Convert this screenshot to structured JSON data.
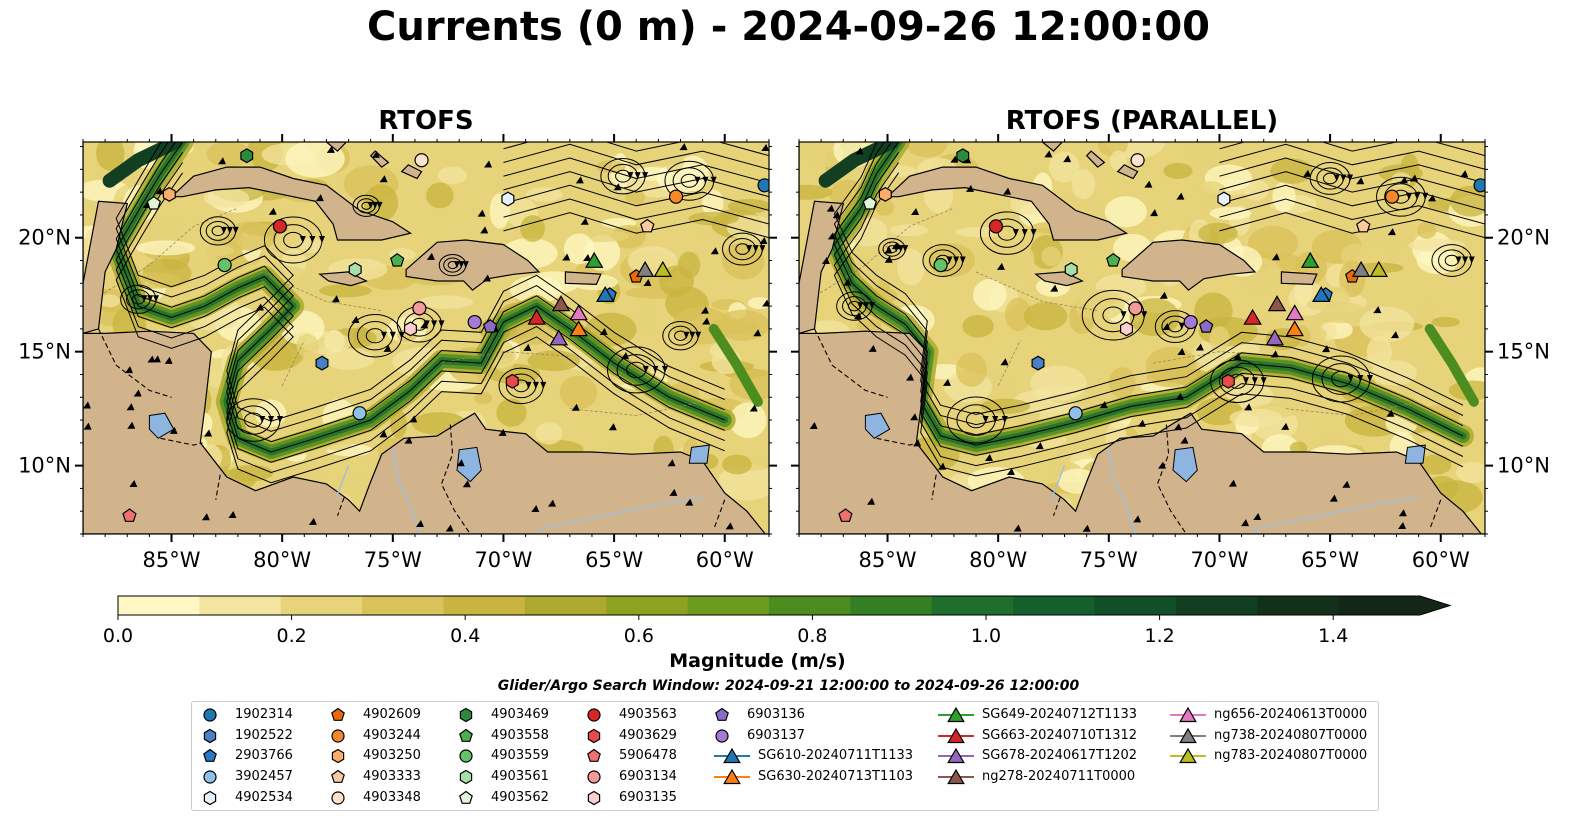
{
  "title": "Currents (0 m) - 2024-09-26 12:00:00",
  "panels": [
    {
      "title": "RTOFS"
    },
    {
      "title": "RTOFS (PARALLEL)"
    }
  ],
  "colors": {
    "land": "#d2b48c",
    "lakes": "#8eb5e0",
    "rivers": "#a4bfdc",
    "colormap": [
      "#fff8c4",
      "#f3e49f",
      "#e6d37a",
      "#d9c25a",
      "#c8b43f",
      "#aca92e",
      "#8fa21f",
      "#6c9a1d",
      "#4d8d20",
      "#347f24",
      "#1f6e2c",
      "#145f2c",
      "#114f28",
      "#123f22",
      "#13301b",
      "#142616"
    ]
  },
  "chart_data": {
    "type": "heatmap",
    "variable": "Currents (0 m)",
    "date": "2024-09-26 12:00:00",
    "extent": {
      "lon": [
        -89,
        -58
      ],
      "lat": [
        7,
        24.2
      ]
    },
    "lon_ticks": [
      "85°W",
      "80°W",
      "75°W",
      "70°W",
      "65°W",
      "60°W"
    ],
    "lon_tick_values": [
      -85,
      -80,
      -75,
      -70,
      -65,
      -60
    ],
    "lat_ticks": [
      "10°N",
      "15°N",
      "20°N"
    ],
    "lat_tick_values": [
      10,
      15,
      20
    ],
    "colorbar": {
      "label": "Magnitude (m/s)",
      "range": [
        0,
        1.5
      ],
      "extend": "max",
      "ticks": [
        "0.0",
        "0.2",
        "0.4",
        "0.6",
        "0.8",
        "1.0",
        "1.2",
        "1.4"
      ],
      "tick_values": [
        0,
        0.2,
        0.4,
        0.6,
        0.8,
        1.0,
        1.2,
        1.4
      ]
    },
    "search_window": "Glider/Argo Search Window: 2024-09-21 12:00:00 to 2024-09-26 12:00:00",
    "argo_floats": [
      {
        "id": "1902314",
        "marker": "circle",
        "color": "#1f77b4",
        "lon": -58.2,
        "lat": 22.3
      },
      {
        "id": "1902522",
        "marker": "hexagon",
        "color": "#4a7fc4",
        "lon": -78.2,
        "lat": 14.5
      },
      {
        "id": "2903766",
        "marker": "pentagon",
        "color": "#2878c8",
        "lon": -65.2,
        "lat": 17.5
      },
      {
        "id": "3902457",
        "marker": "circle",
        "color": "#8ec1ea",
        "lon": -76.5,
        "lat": 12.3
      },
      {
        "id": "4902534",
        "marker": "hexagon",
        "color": "#e6f2fb",
        "lon": -69.8,
        "lat": 21.7
      },
      {
        "id": "4902609",
        "marker": "pentagon",
        "color": "#e86a0c",
        "lon": -64.0,
        "lat": 18.3
      },
      {
        "id": "4903244",
        "marker": "circle",
        "color": "#f5882a",
        "lon": -62.2,
        "lat": 21.8
      },
      {
        "id": "4903250",
        "marker": "hexagon",
        "color": "#fbad6a",
        "lon": -85.1,
        "lat": 21.9
      },
      {
        "id": "4903333",
        "marker": "pentagon",
        "color": "#fdc9a0",
        "lon": -63.5,
        "lat": 20.5
      },
      {
        "id": "4903348",
        "marker": "circle",
        "color": "#fde3cd",
        "lon": -73.7,
        "lat": 23.4
      },
      {
        "id": "4903469",
        "marker": "hexagon",
        "color": "#2b8a3e",
        "lon": -81.6,
        "lat": 23.6
      },
      {
        "id": "4903558",
        "marker": "pentagon",
        "color": "#4caf50",
        "lon": -74.8,
        "lat": 19.0
      },
      {
        "id": "4903559",
        "marker": "circle",
        "color": "#66c266",
        "lon": -82.6,
        "lat": 18.8
      },
      {
        "id": "4903561",
        "marker": "hexagon",
        "color": "#a8dfa8",
        "lon": -76.7,
        "lat": 18.6
      },
      {
        "id": "4903562",
        "marker": "pentagon",
        "color": "#e0f5d8",
        "lon": -85.8,
        "lat": 21.5
      },
      {
        "id": "4903563",
        "marker": "circle",
        "color": "#d62728",
        "lon": -80.1,
        "lat": 20.5
      },
      {
        "id": "4903629",
        "marker": "hexagon",
        "color": "#e84a4a",
        "lon": -69.6,
        "lat": 13.7
      },
      {
        "id": "5906478",
        "marker": "pentagon",
        "color": "#f07070",
        "lon": -86.9,
        "lat": 7.8
      },
      {
        "id": "6903134",
        "marker": "circle",
        "color": "#f59a9a",
        "lon": -73.8,
        "lat": 16.9
      },
      {
        "id": "6903135",
        "marker": "hexagon",
        "color": "#fcd0cf",
        "lon": -74.2,
        "lat": 16.0
      },
      {
        "id": "6903136",
        "marker": "pentagon",
        "color": "#8c6bc7",
        "lon": -70.6,
        "lat": 16.1
      },
      {
        "id": "6903137",
        "marker": "circle",
        "color": "#a57ad6",
        "lon": -71.3,
        "lat": 16.3
      }
    ],
    "gliders": [
      {
        "id": "SG610-20240711T1133",
        "color": "#1f77b4",
        "lon": -65.4,
        "lat": 17.5
      },
      {
        "id": "SG630-20240713T1103",
        "color": "#ff7f0e",
        "lon": -66.6,
        "lat": 16.0
      },
      {
        "id": "SG649-20240712T1133",
        "color": "#2ca02c",
        "lon": -65.9,
        "lat": 19.0
      },
      {
        "id": "SG663-20240710T1312",
        "color": "#d62728",
        "lon": -68.5,
        "lat": 16.5
      },
      {
        "id": "SG678-20240617T1202",
        "color": "#9467bd",
        "lon": -67.5,
        "lat": 15.6
      },
      {
        "id": "ng278-20240711T0000",
        "color": "#8c564b",
        "lon": -67.4,
        "lat": 17.1
      },
      {
        "id": "ng656-20240613T0000",
        "color": "#e377c2",
        "lon": -66.6,
        "lat": 16.7
      },
      {
        "id": "ng738-20240807T0000",
        "color": "#7f7f7f",
        "lon": -63.6,
        "lat": 18.6
      },
      {
        "id": "ng783-20240807T0000",
        "color": "#bcbd22",
        "lon": -62.8,
        "lat": 18.6
      }
    ]
  }
}
